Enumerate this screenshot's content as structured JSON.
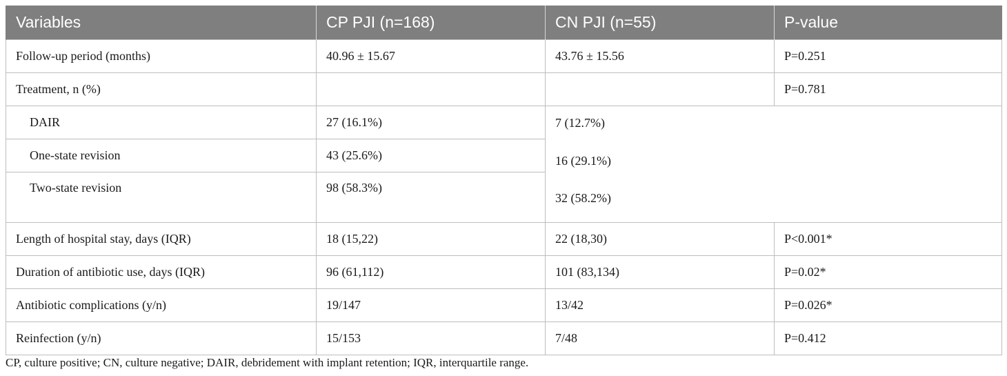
{
  "table": {
    "headers": [
      "Variables",
      "CP PJI (n=168)",
      "CN PJI (n=55)",
      "P-value"
    ],
    "rows": {
      "followup": {
        "label": "Follow-up period (months)",
        "cp": "40.96 ± 15.67",
        "cn": "43.76 ± 15.56",
        "p": "P=0.251"
      },
      "treatment": {
        "label": "Treatment, n (%)",
        "cp": "",
        "cn": "",
        "p": "P=0.781"
      },
      "dair": {
        "label": "DAIR",
        "cp": "27 (16.1%)"
      },
      "one_state": {
        "label": "One-state revision",
        "cp": "43 (25.6%)"
      },
      "two_state": {
        "label": "Two-state revision",
        "cp": "98 (58.3%)"
      },
      "treatment_cn": [
        "7 (12.7%)",
        "16 (29.1%)",
        "32 (58.2%)"
      ],
      "los": {
        "label": "Length of hospital stay, days (IQR)",
        "cp": "18 (15,22)",
        "cn": "22 (18,30)",
        "p": "P<0.001*"
      },
      "antibiotic_duration": {
        "label": "Duration of antibiotic use, days (IQR)",
        "cp": "96 (61,112)",
        "cn": "101 (83,134)",
        "p": "P=0.02*"
      },
      "antibiotic_complications": {
        "label": "Antibiotic complications (y/n)",
        "cp": "19/147",
        "cn": "13/42",
        "p": "P=0.026*"
      },
      "reinfection": {
        "label": "Reinfection (y/n)",
        "cp": "15/153",
        "cn": "7/48",
        "p": "P=0.412"
      }
    }
  },
  "footnote": "CP, culture positive; CN, culture negative; DAIR, debridement with implant retention; IQR, interquartile range."
}
